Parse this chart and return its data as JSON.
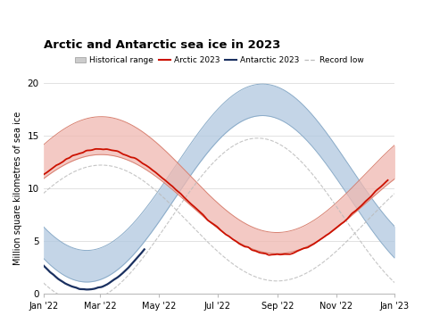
{
  "title": "Arctic and Antarctic sea ice in 2023",
  "ylabel": "Million square kilometres of sea ice",
  "ylim": [
    0,
    20
  ],
  "yticks": [
    0,
    5,
    10,
    15,
    20
  ],
  "xtick_labels": [
    "Jan '22",
    "Mar '22",
    "May '22",
    "Jul '22",
    "Sep '22",
    "Nov '22",
    "Jan '23"
  ],
  "xtick_days": [
    0,
    59,
    120,
    181,
    243,
    304,
    365
  ],
  "background_color": "#ffffff",
  "arctic_color": "#cc1100",
  "arctic_band_color": "#f0b8b0",
  "antarctic_color": "#1a3060",
  "antarctic_band_color": "#b0c8e0",
  "record_low_color": "#bbbbbb",
  "grid_color": "#dddddd"
}
